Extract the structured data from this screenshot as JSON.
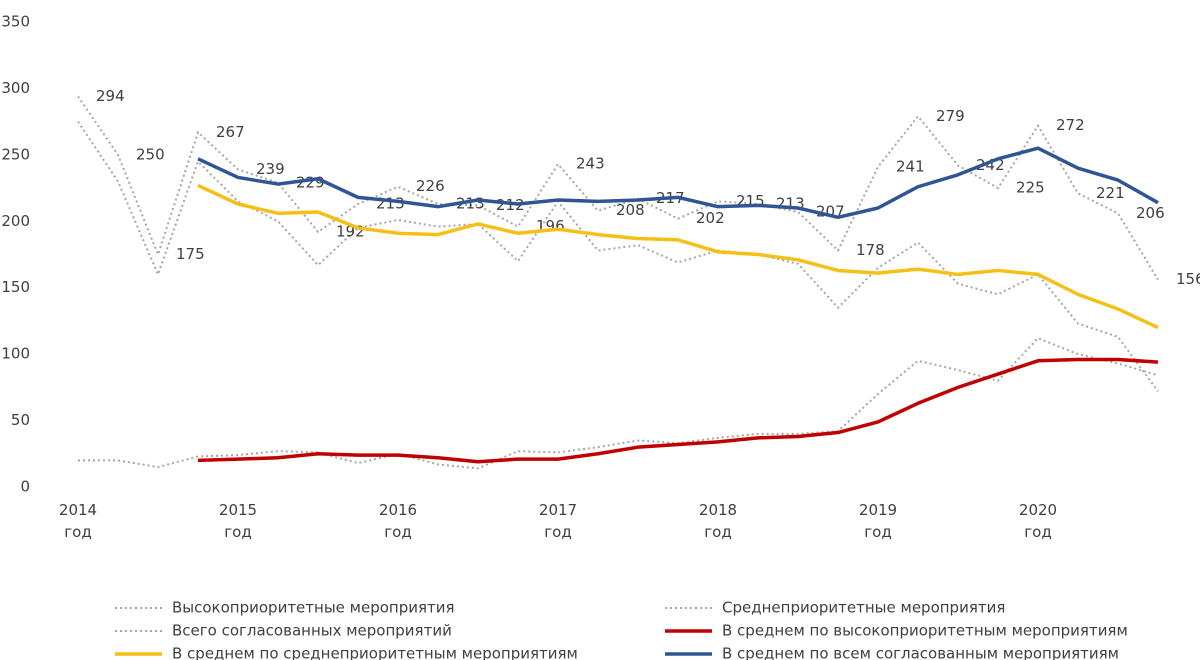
{
  "chart_data": {
    "type": "line",
    "categories": [
      "2014 год",
      null,
      null,
      null,
      "2015 год",
      null,
      null,
      null,
      "2016 год",
      null,
      null,
      null,
      "2017 год",
      null,
      null,
      null,
      "2018 год",
      null,
      null,
      null,
      "2019 год",
      null,
      null,
      null,
      "2020 год",
      null,
      null,
      null
    ],
    "ylim": [
      0,
      350
    ],
    "yticks": [
      0,
      50,
      100,
      150,
      200,
      250,
      300,
      350
    ],
    "grid": false,
    "series": [
      {
        "name": "Высокоприоритетные мероприятия",
        "color": "#a6a6a6",
        "style": "dotted",
        "values": [
          20,
          20,
          15,
          23,
          24,
          27,
          26,
          18,
          25,
          17,
          14,
          27,
          26,
          30,
          35,
          33,
          37,
          40,
          40,
          42,
          70,
          95,
          88,
          80,
          112,
          100,
          93,
          84
        ]
      },
      {
        "name": "Среднеприоритетные мероприятия",
        "color": "#a6a6a6",
        "style": "dotted",
        "values": [
          275,
          230,
          160,
          245,
          215,
          200,
          167,
          195,
          201,
          196,
          198,
          170,
          215,
          178,
          182,
          169,
          178,
          175,
          168,
          135,
          165,
          184,
          153,
          145,
          160,
          123,
          113,
          72
        ]
      },
      {
        "name": "Всего согласованных мероприятий",
        "color": "#a6a6a6",
        "style": "dotted",
        "values": [
          294,
          250,
          175,
          267,
          239,
          229,
          192,
          213,
          226,
          213,
          212,
          196,
          243,
          208,
          217,
          202,
          215,
          213,
          207,
          178,
          241,
          279,
          242,
          225,
          272,
          221,
          206,
          156
        ],
        "data_labels": true
      },
      {
        "name": "В среднем по высокоприоритетным мероприятиям",
        "color": "#c00000",
        "style": "solid",
        "values": [
          null,
          null,
          null,
          20,
          21,
          22,
          25,
          24,
          24,
          22,
          19,
          21,
          21,
          25,
          30,
          32,
          34,
          37,
          38,
          41,
          49,
          63,
          75,
          85,
          95,
          96,
          96,
          94
        ]
      },
      {
        "name": "В среднем по среднеприоритетным мероприятиям",
        "color": "#f5c016",
        "style": "solid",
        "values": [
          null,
          null,
          null,
          227,
          213,
          206,
          207,
          195,
          191,
          190,
          198,
          191,
          194,
          190,
          187,
          186,
          177,
          175,
          171,
          163,
          161,
          164,
          160,
          163,
          160,
          145,
          134,
          120
        ]
      },
      {
        "name": "В среднем по всем согласованным мероприятиям",
        "color": "#2f5597",
        "style": "solid",
        "values": [
          null,
          null,
          null,
          247,
          233,
          228,
          232,
          218,
          215,
          211,
          216,
          213,
          216,
          215,
          216,
          218,
          211,
          212,
          210,
          203,
          210,
          226,
          235,
          247,
          255,
          240,
          231,
          214
        ]
      }
    ]
  }
}
